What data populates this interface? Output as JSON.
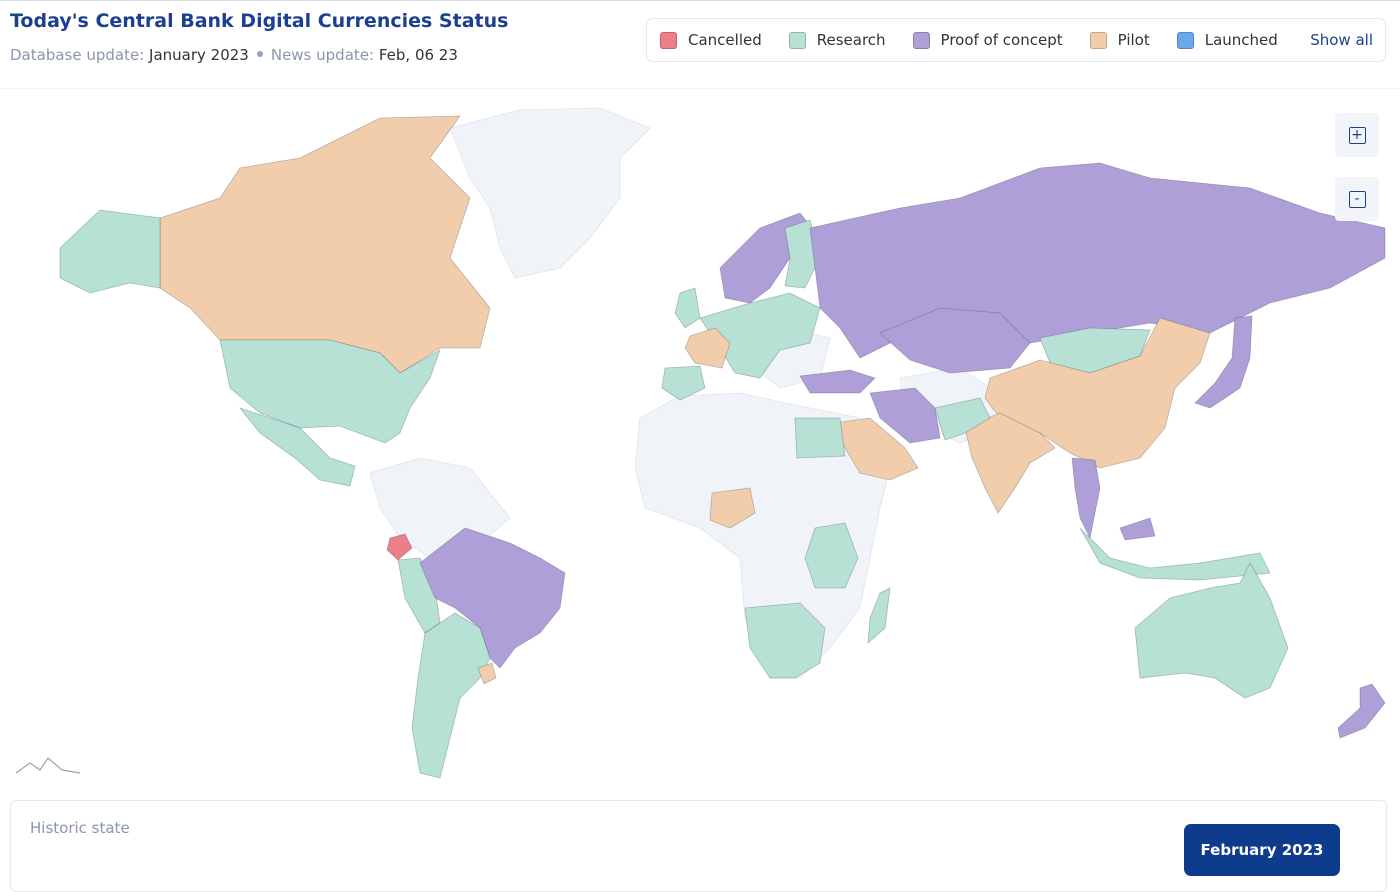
{
  "header": {
    "title": "Today's Central Bank Digital Currencies Status",
    "database_update_label": "Database update:",
    "database_update": "January 2023",
    "news_update_label": "News update:",
    "news_update": "Feb, 06 23"
  },
  "legend": {
    "items": [
      {
        "label": "Cancelled",
        "color": "#ec7e89"
      },
      {
        "label": "Research",
        "color": "#b6e1d4"
      },
      {
        "label": "Proof of concept",
        "color": "#ae9fd9"
      },
      {
        "label": "Pilot",
        "color": "#f2cdac"
      },
      {
        "label": "Launched",
        "color": "#6aa8ee"
      }
    ],
    "show_all": "Show all"
  },
  "zoom": {
    "in": "+",
    "out": "-"
  },
  "history": {
    "label": "Historic state",
    "current": "February 2023"
  }
}
